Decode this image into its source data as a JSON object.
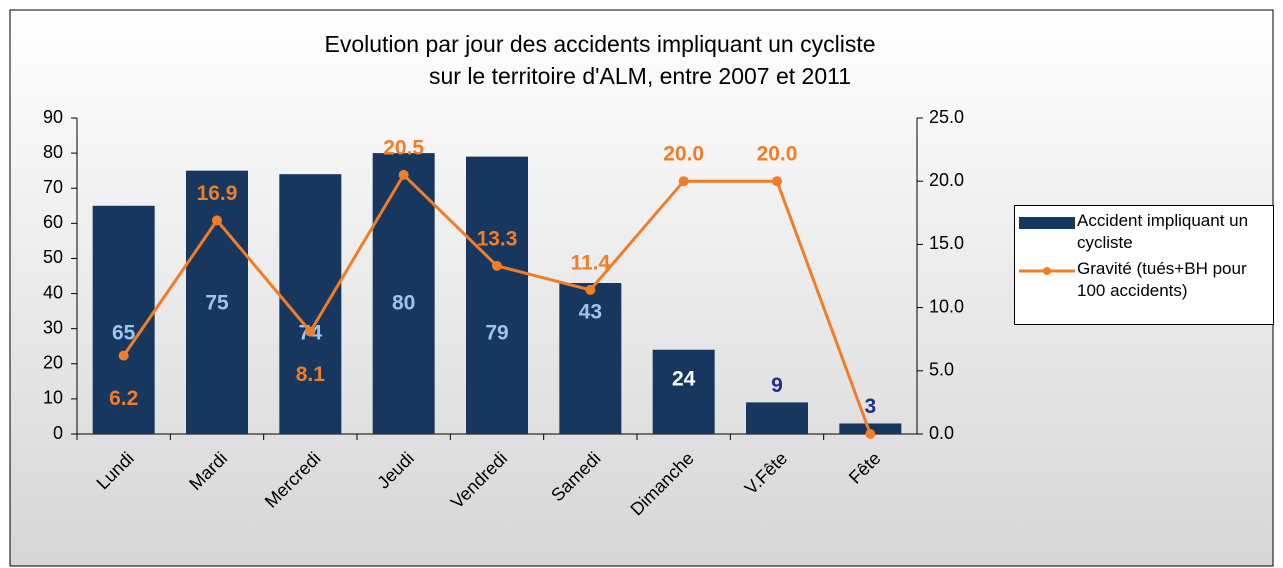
{
  "chart_data": {
    "type": "bar_line",
    "title": [
      "Evolution par jour des accidents impliquant un cycliste",
      "sur le territoire d'ALM, entre 2007 et 2011"
    ],
    "categories": [
      "Lundi",
      "Mardi",
      "Mercredi",
      "Jeudi",
      "Vendredi",
      "Samedi",
      "Dimanche",
      "V.Fête",
      "Fête"
    ],
    "series": [
      {
        "name": "Accident impliquant un cycliste",
        "type": "bar",
        "color": "#17375e",
        "values": [
          65,
          75,
          74,
          80,
          79,
          43,
          24,
          9,
          3
        ]
      },
      {
        "name": "Gravité (tués+BH pour 100 accidents)",
        "type": "line",
        "axis": "y2",
        "color": "#f07d28",
        "values": [
          6.2,
          16.9,
          8.1,
          20.5,
          13.3,
          11.4,
          20.0,
          20.0,
          0.0
        ],
        "value_labels": [
          "6.2",
          "16.9",
          "8.1",
          "20.5",
          "13.3",
          "11.4",
          "20.0",
          "20.0",
          null
        ]
      }
    ],
    "ylim": [
      0,
      90
    ],
    "yticks": [
      0,
      10,
      20,
      30,
      40,
      50,
      60,
      70,
      80,
      90
    ],
    "y2lim": [
      0,
      25
    ],
    "y2ticks": [
      {
        "value": 0,
        "label": "0.0"
      },
      {
        "value": 5,
        "label": "5.0"
      },
      {
        "value": 10,
        "label": "10.0"
      },
      {
        "value": 15,
        "label": "15.0"
      },
      {
        "value": 20,
        "label": "20.0"
      },
      {
        "value": 25,
        "label": "25.0"
      }
    ],
    "legend": "right"
  }
}
